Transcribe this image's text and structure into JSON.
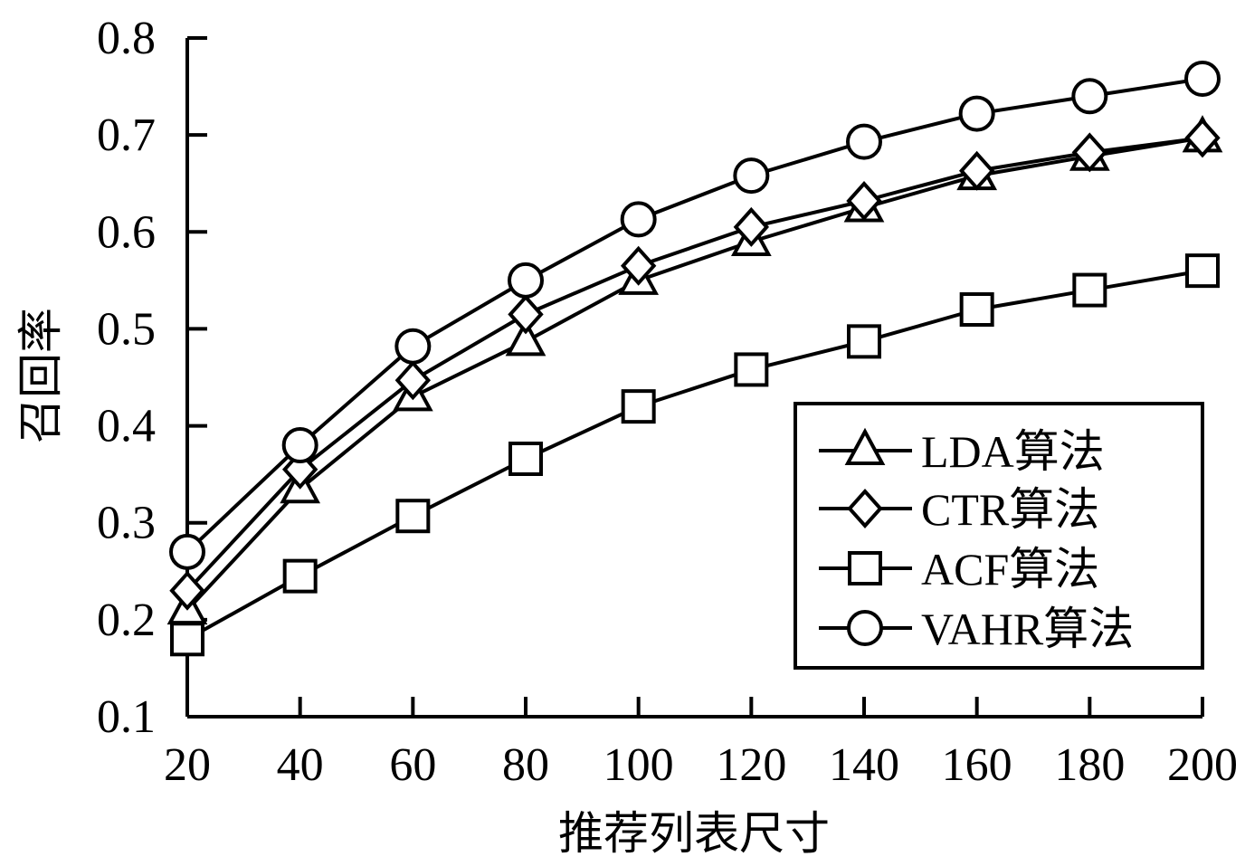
{
  "chart_data": {
    "type": "line",
    "title": "",
    "xlabel": "推荐列表尺寸",
    "ylabel": "召回率",
    "x": [
      20,
      40,
      60,
      80,
      100,
      120,
      140,
      160,
      180,
      200
    ],
    "xlim": [
      20,
      200
    ],
    "ylim": [
      0.1,
      0.8
    ],
    "xticks": [
      "20",
      "40",
      "60",
      "80",
      "100",
      "120",
      "140",
      "160",
      "180",
      "200"
    ],
    "yticks": [
      "0.1",
      "0.2",
      "0.3",
      "0.4",
      "0.5",
      "0.6",
      "0.7",
      "0.8"
    ],
    "grid": false,
    "legend_position": "bottom-right",
    "series": [
      {
        "name": "LDA算法",
        "marker": "triangle",
        "values": [
          0.21,
          0.335,
          0.43,
          0.487,
          0.55,
          0.59,
          0.625,
          0.658,
          0.678,
          0.697
        ]
      },
      {
        "name": "CTR算法",
        "marker": "diamond",
        "values": [
          0.23,
          0.355,
          0.447,
          0.515,
          0.565,
          0.605,
          0.632,
          0.663,
          0.682,
          0.697
        ]
      },
      {
        "name": "ACF算法",
        "marker": "square",
        "values": [
          0.18,
          0.245,
          0.307,
          0.366,
          0.42,
          0.458,
          0.487,
          0.52,
          0.54,
          0.56
        ]
      },
      {
        "name": "VAHR算法",
        "marker": "circle",
        "values": [
          0.27,
          0.38,
          0.482,
          0.55,
          0.613,
          0.658,
          0.693,
          0.722,
          0.74,
          0.758
        ]
      }
    ]
  }
}
